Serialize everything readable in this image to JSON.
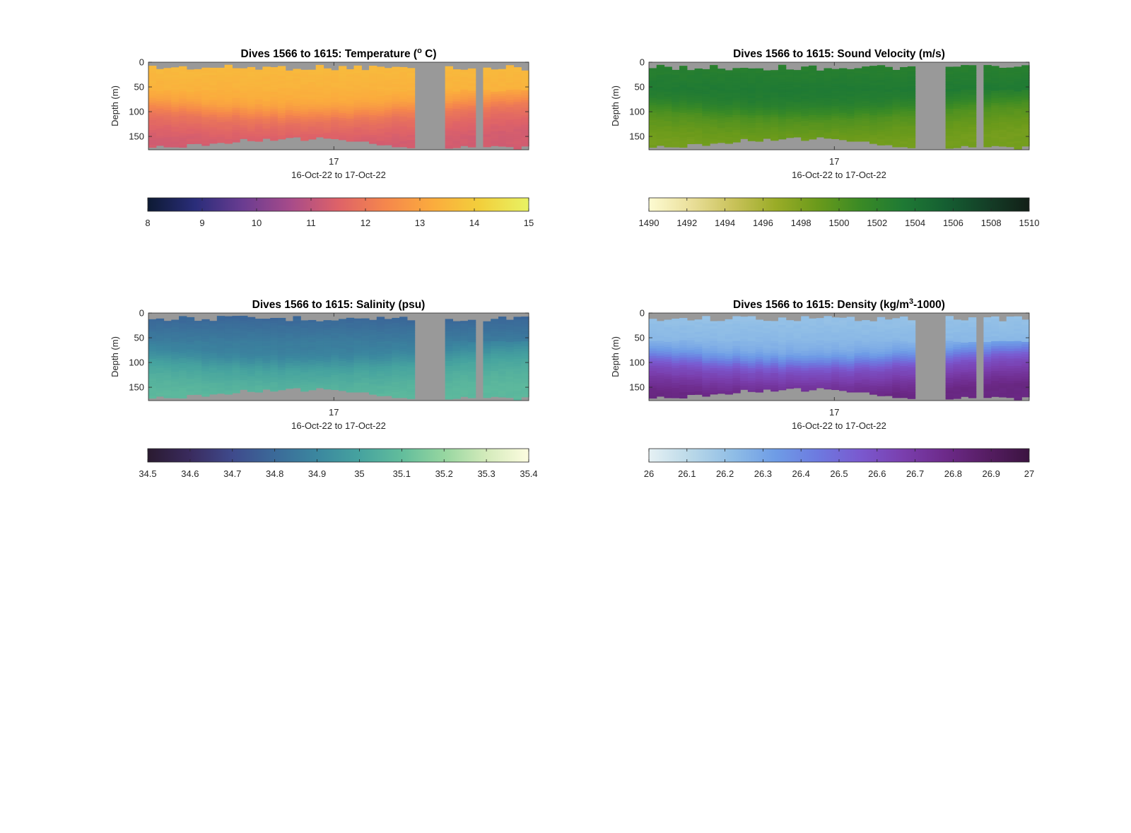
{
  "chart_data": [
    {
      "type": "heatmap",
      "title_main": "Dives 1566 to 1615: Temperature (",
      "title_sup": "o",
      "title_tail": " C)",
      "ylabel": "Depth (m)",
      "yticks": [
        "0",
        "50",
        "100",
        "150"
      ],
      "ylim": [
        0,
        177
      ],
      "xtick": "17",
      "xlabel": "16-Oct-22 to 17-Oct-22",
      "n_dives": 50,
      "colorbar": {
        "min": 8,
        "max": 15,
        "ticks": [
          "8",
          "9",
          "10",
          "11",
          "12",
          "13",
          "14",
          "15"
        ],
        "colors": [
          "#0d1a33",
          "#2a2d7a",
          "#6a3c91",
          "#a74b8a",
          "#de6268",
          "#f5874c",
          "#fbac3d",
          "#f2d03c",
          "#e8f264"
        ]
      },
      "profile": {
        "surface": 13.6,
        "mid": 13.4,
        "deep": 11.6,
        "thermocline_depth": 95,
        "bottom": 11.3
      },
      "gaps": [
        [
          35,
          38
        ],
        [
          43,
          43
        ]
      ],
      "gap_color": "#999999"
    },
    {
      "type": "heatmap",
      "title_main": "Dives 1566 to 1615: Sound Velocity (m/s)",
      "title_sup": "",
      "title_tail": "",
      "ylabel": "Depth (m)",
      "yticks": [
        "0",
        "50",
        "100",
        "150"
      ],
      "ylim": [
        0,
        177
      ],
      "xtick": "17",
      "xlabel": "16-Oct-22 to 17-Oct-22",
      "n_dives": 50,
      "colorbar": {
        "min": 1490,
        "max": 1510,
        "ticks": [
          "1490",
          "1492",
          "1494",
          "1496",
          "1498",
          "1500",
          "1502",
          "1504",
          "1506",
          "1508",
          "1510"
        ],
        "colors": [
          "#fdfbd2",
          "#eadf9a",
          "#c9c25a",
          "#9aac27",
          "#6a9a1b",
          "#3a8a25",
          "#1f7a34",
          "#155f32",
          "#143f27",
          "#121f17"
        ]
      },
      "profile": {
        "surface": 1502.5,
        "mid": 1503.3,
        "deep": 1499.2,
        "thermocline_depth": 95,
        "bottom": 1498.4
      },
      "gaps": [
        [
          35,
          38
        ],
        [
          43,
          43
        ]
      ],
      "gap_color": "#999999"
    },
    {
      "type": "heatmap",
      "title_main": "Dives 1566 to 1615: Salinity (psu)",
      "title_sup": "",
      "title_tail": "",
      "ylabel": "Depth (m)",
      "yticks": [
        "0",
        "50",
        "100",
        "150"
      ],
      "ylim": [
        0,
        177
      ],
      "xtick": "17",
      "xlabel": "16-Oct-22 to 17-Oct-22",
      "n_dives": 50,
      "colorbar": {
        "min": 34.5,
        "max": 35.4,
        "ticks": [
          "34.5",
          "34.6",
          "34.7",
          "34.8",
          "34.9",
          "35",
          "35.1",
          "35.2",
          "35.3",
          "35.4"
        ],
        "colors": [
          "#2a1a30",
          "#3a2b5e",
          "#3f4a8c",
          "#3b6a99",
          "#3b879f",
          "#46a39f",
          "#62bd9c",
          "#96d6a0",
          "#d4ebbb",
          "#fdfce0"
        ]
      },
      "profile": {
        "surface": 34.78,
        "mid": 34.86,
        "deep": 35.04,
        "thermocline_depth": 95,
        "bottom": 35.08
      },
      "gaps": [
        [
          35,
          38
        ],
        [
          43,
          43
        ]
      ],
      "gap_color": "#999999"
    },
    {
      "type": "heatmap",
      "title_main": "Dives 1566 to 1615: Density (kg/m",
      "title_sup": "3",
      "title_tail": "-1000)",
      "ylabel": "Depth (m)",
      "yticks": [
        "0",
        "50",
        "100",
        "150"
      ],
      "ylim": [
        0,
        177
      ],
      "xtick": "17",
      "xlabel": "16-Oct-22 to 17-Oct-22",
      "n_dives": 50,
      "colorbar": {
        "min": 26,
        "max": 27,
        "ticks": [
          "26",
          "26.1",
          "26.2",
          "26.3",
          "26.4",
          "26.5",
          "26.6",
          "26.7",
          "26.8",
          "26.9",
          "27"
        ],
        "colors": [
          "#e6f1f4",
          "#b9d8e8",
          "#8fbde6",
          "#6e9ce6",
          "#6d7ae0",
          "#7a59cf",
          "#7a3fae",
          "#6d2a8a",
          "#561d63",
          "#3b1440"
        ]
      },
      "profile": {
        "surface": 26.2,
        "mid": 26.24,
        "deep": 26.68,
        "thermocline_depth": 95,
        "bottom": 26.8
      },
      "gaps": [
        [
          35,
          38
        ],
        [
          43,
          43
        ]
      ],
      "gap_color": "#999999"
    }
  ]
}
